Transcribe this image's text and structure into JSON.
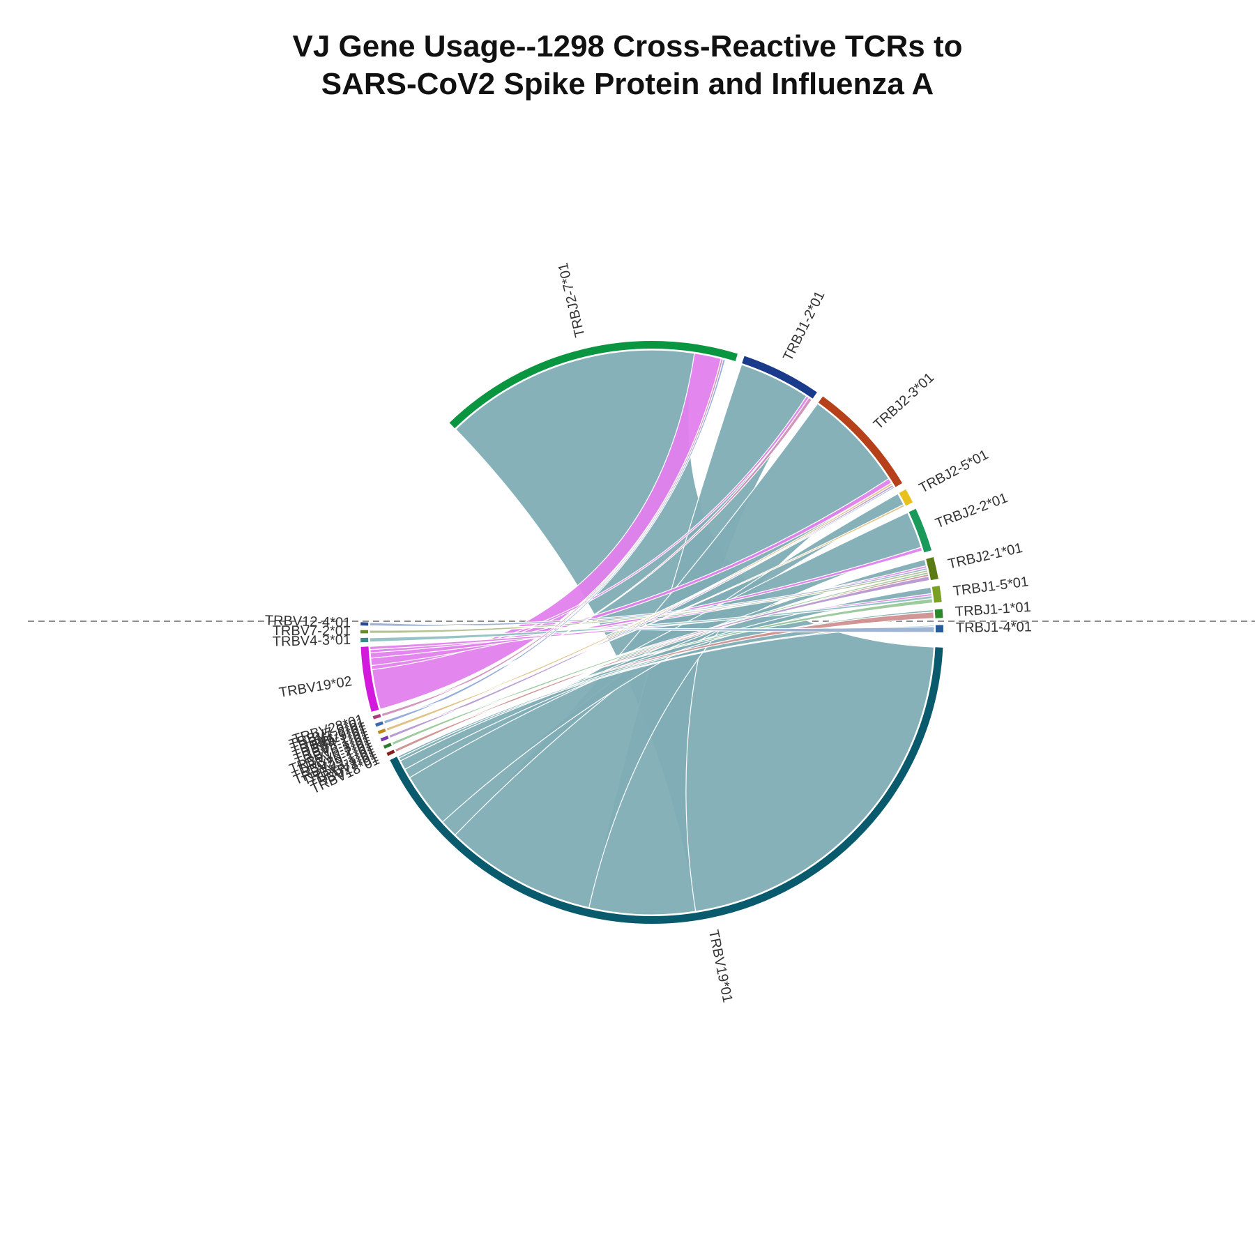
{
  "chart_data": {
    "type": "chord",
    "title_lines": [
      "VJ Gene Usage--1298 Cross-Reactive TCRs to",
      "SARS-CoV2 Spike Protein and Influenza A"
    ],
    "j_genes": [
      {
        "name": "TRBJ2-7*01",
        "count": 420,
        "color": "#0a9640"
      },
      {
        "name": "TRBJ1-2*01",
        "count": 110,
        "color": "#1a3a8c"
      },
      {
        "name": "TRBJ2-3*01",
        "count": 160,
        "color": "#b5401a"
      },
      {
        "name": "TRBJ2-5*01",
        "count": 20,
        "color": "#e8c21a"
      },
      {
        "name": "TRBJ2-2*01",
        "count": 60,
        "color": "#1a9a5a"
      },
      {
        "name": "TRBJ2-1*01",
        "count": 30,
        "color": "#5a7a14"
      },
      {
        "name": "TRBJ1-5*01",
        "count": 22,
        "color": "#7aa022"
      },
      {
        "name": "TRBJ1-1*01",
        "count": 12,
        "color": "#2a8a2a"
      },
      {
        "name": "TRBJ1-4*01",
        "count": 10,
        "color": "#2a5a9a"
      }
    ],
    "v_genes": [
      {
        "name": "TRBV19*01",
        "count": 700,
        "color": "#0a5a6e"
      },
      {
        "name": "TRBV18*01",
        "count": 3,
        "color": "#8a1a1a"
      },
      {
        "name": "TRBV27*01",
        "count": 3,
        "color": "#2a7a2a"
      },
      {
        "name": "TRBV5-1*01",
        "count": 3,
        "color": "#7a3aaa"
      },
      {
        "name": "TRBV20-1*01",
        "count": 3,
        "color": "#c08a1a"
      },
      {
        "name": "TRBV9*01",
        "count": 3,
        "color": "#3a6ab0"
      },
      {
        "name": "TRBV28*01",
        "count": 3,
        "color": "#aa3a7a"
      },
      {
        "name": "TRBV19*02",
        "count": 60,
        "color": "#d21adc"
      },
      {
        "name": "TRBV4-3*01",
        "count": 4,
        "color": "#3a8a8a"
      },
      {
        "name": "TRBV7-2*01",
        "count": 3,
        "color": "#6a8a2a"
      },
      {
        "name": "TRBV12-4*01",
        "count": 3,
        "color": "#2a4a8a"
      }
    ],
    "v_label_cluster": [
      "TRBV28*01",
      "TRBV7-9*01",
      "TRBV7-6*01",
      "TRBV6-5*01",
      "TRBV4-1*01",
      "TRBV5-1*01",
      "TRBV6-1*01",
      "TRBV10-3*01",
      "TRBV6-2*01",
      "TRBV20-1*01",
      "TRBV29-1*01",
      "TRBV3-1*01",
      "TRBV2*01",
      "TRBV27*01",
      "TRBV18*01"
    ],
    "links": [
      {
        "v": "TRBV19*01",
        "j": "TRBJ2-7*01",
        "value": 362,
        "color": "#80adb5"
      },
      {
        "v": "TRBV19*01",
        "j": "TRBJ1-2*01",
        "value": 101,
        "color": "#80adb5"
      },
      {
        "v": "TRBV19*01",
        "j": "TRBJ2-3*01",
        "value": 145,
        "color": "#80adb5"
      },
      {
        "v": "TRBV19*01",
        "j": "TRBJ2-5*01",
        "value": 17,
        "color": "#80adb5"
      },
      {
        "v": "TRBV19*01",
        "j": "TRBJ2-2*01",
        "value": 52,
        "color": "#80adb5"
      },
      {
        "v": "TRBV19*01",
        "j": "TRBJ2-1*01",
        "value": 9,
        "color": "#80adb5"
      },
      {
        "v": "TRBV19*01",
        "j": "TRBJ1-5*01",
        "value": 9,
        "color": "#80adb5"
      },
      {
        "v": "TRBV19*01",
        "j": "TRBJ1-1*01",
        "value": 3,
        "color": "#80adb5"
      },
      {
        "v": "TRBV19*01",
        "j": "TRBJ1-4*01",
        "value": 2,
        "color": "#80adb5"
      },
      {
        "v": "TRBV19*02",
        "j": "TRBJ2-7*01",
        "value": 38,
        "color": "#e27fec"
      },
      {
        "v": "TRBV19*02",
        "j": "TRBJ1-2*01",
        "value": 4,
        "color": "#e27fec"
      },
      {
        "v": "TRBV19*02",
        "j": "TRBJ2-3*01",
        "value": 7,
        "color": "#e27fec"
      },
      {
        "v": "TRBV19*02",
        "j": "TRBJ2-2*01",
        "value": 5,
        "color": "#e27fec"
      },
      {
        "v": "TRBV19*02",
        "j": "TRBJ2-1*01",
        "value": 3,
        "color": "#e27fec"
      },
      {
        "v": "TRBV19*02",
        "j": "TRBJ1-5*01",
        "value": 3,
        "color": "#e27fec"
      },
      {
        "v": "TRBV12-4*01",
        "j": "TRBJ2-1*01",
        "value": 3,
        "color": "#9ab0d0"
      },
      {
        "v": "TRBV7-2*01",
        "j": "TRBJ2-1*01",
        "value": 3,
        "color": "#b0c090"
      },
      {
        "v": "TRBV4-3*01",
        "j": "TRBJ1-5*01",
        "value": 4,
        "color": "#90c0c0"
      },
      {
        "v": "TRBV28*01",
        "j": "TRBJ2-7*01",
        "value": 3,
        "color": "#d090b8"
      },
      {
        "v": "TRBV9*01",
        "j": "TRBJ2-7*01",
        "value": 3,
        "color": "#90a8d8"
      },
      {
        "v": "TRBV20-1*01",
        "j": "TRBJ2-3*01",
        "value": 3,
        "color": "#e0c080"
      },
      {
        "v": "TRBV5-1*01",
        "j": "TRBJ2-3*01",
        "value": 3,
        "color": "#b898d0"
      },
      {
        "v": "TRBV27*01",
        "j": "TRBJ2-1*01",
        "value": 3,
        "color": "#98c898"
      },
      {
        "v": "TRBV18*01",
        "j": "TRBJ2-1*01",
        "value": 3,
        "color": "#d09090"
      },
      {
        "v": "TRBV28*01",
        "j": "TRBJ1-2*01",
        "value": 5,
        "color": "#d090b8"
      },
      {
        "v": "TRBV9*01",
        "j": "TRBJ2-3*01",
        "value": 2,
        "color": "#90a8d8"
      },
      {
        "v": "TRBV20-1*01",
        "j": "TRBJ2-5*01",
        "value": 3,
        "color": "#e0c080"
      },
      {
        "v": "TRBV5-1*01",
        "j": "TRBJ2-1*01",
        "value": 6,
        "color": "#b898d0"
      },
      {
        "v": "TRBV27*01",
        "j": "TRBJ1-5*01",
        "value": 6,
        "color": "#98c898"
      },
      {
        "v": "TRBV18*01",
        "j": "TRBJ1-1*01",
        "value": 9,
        "color": "#d09090"
      },
      {
        "v": "TRBV12-4*01",
        "j": "TRBJ1-4*01",
        "value": 8,
        "color": "#9ab0d0"
      }
    ]
  }
}
